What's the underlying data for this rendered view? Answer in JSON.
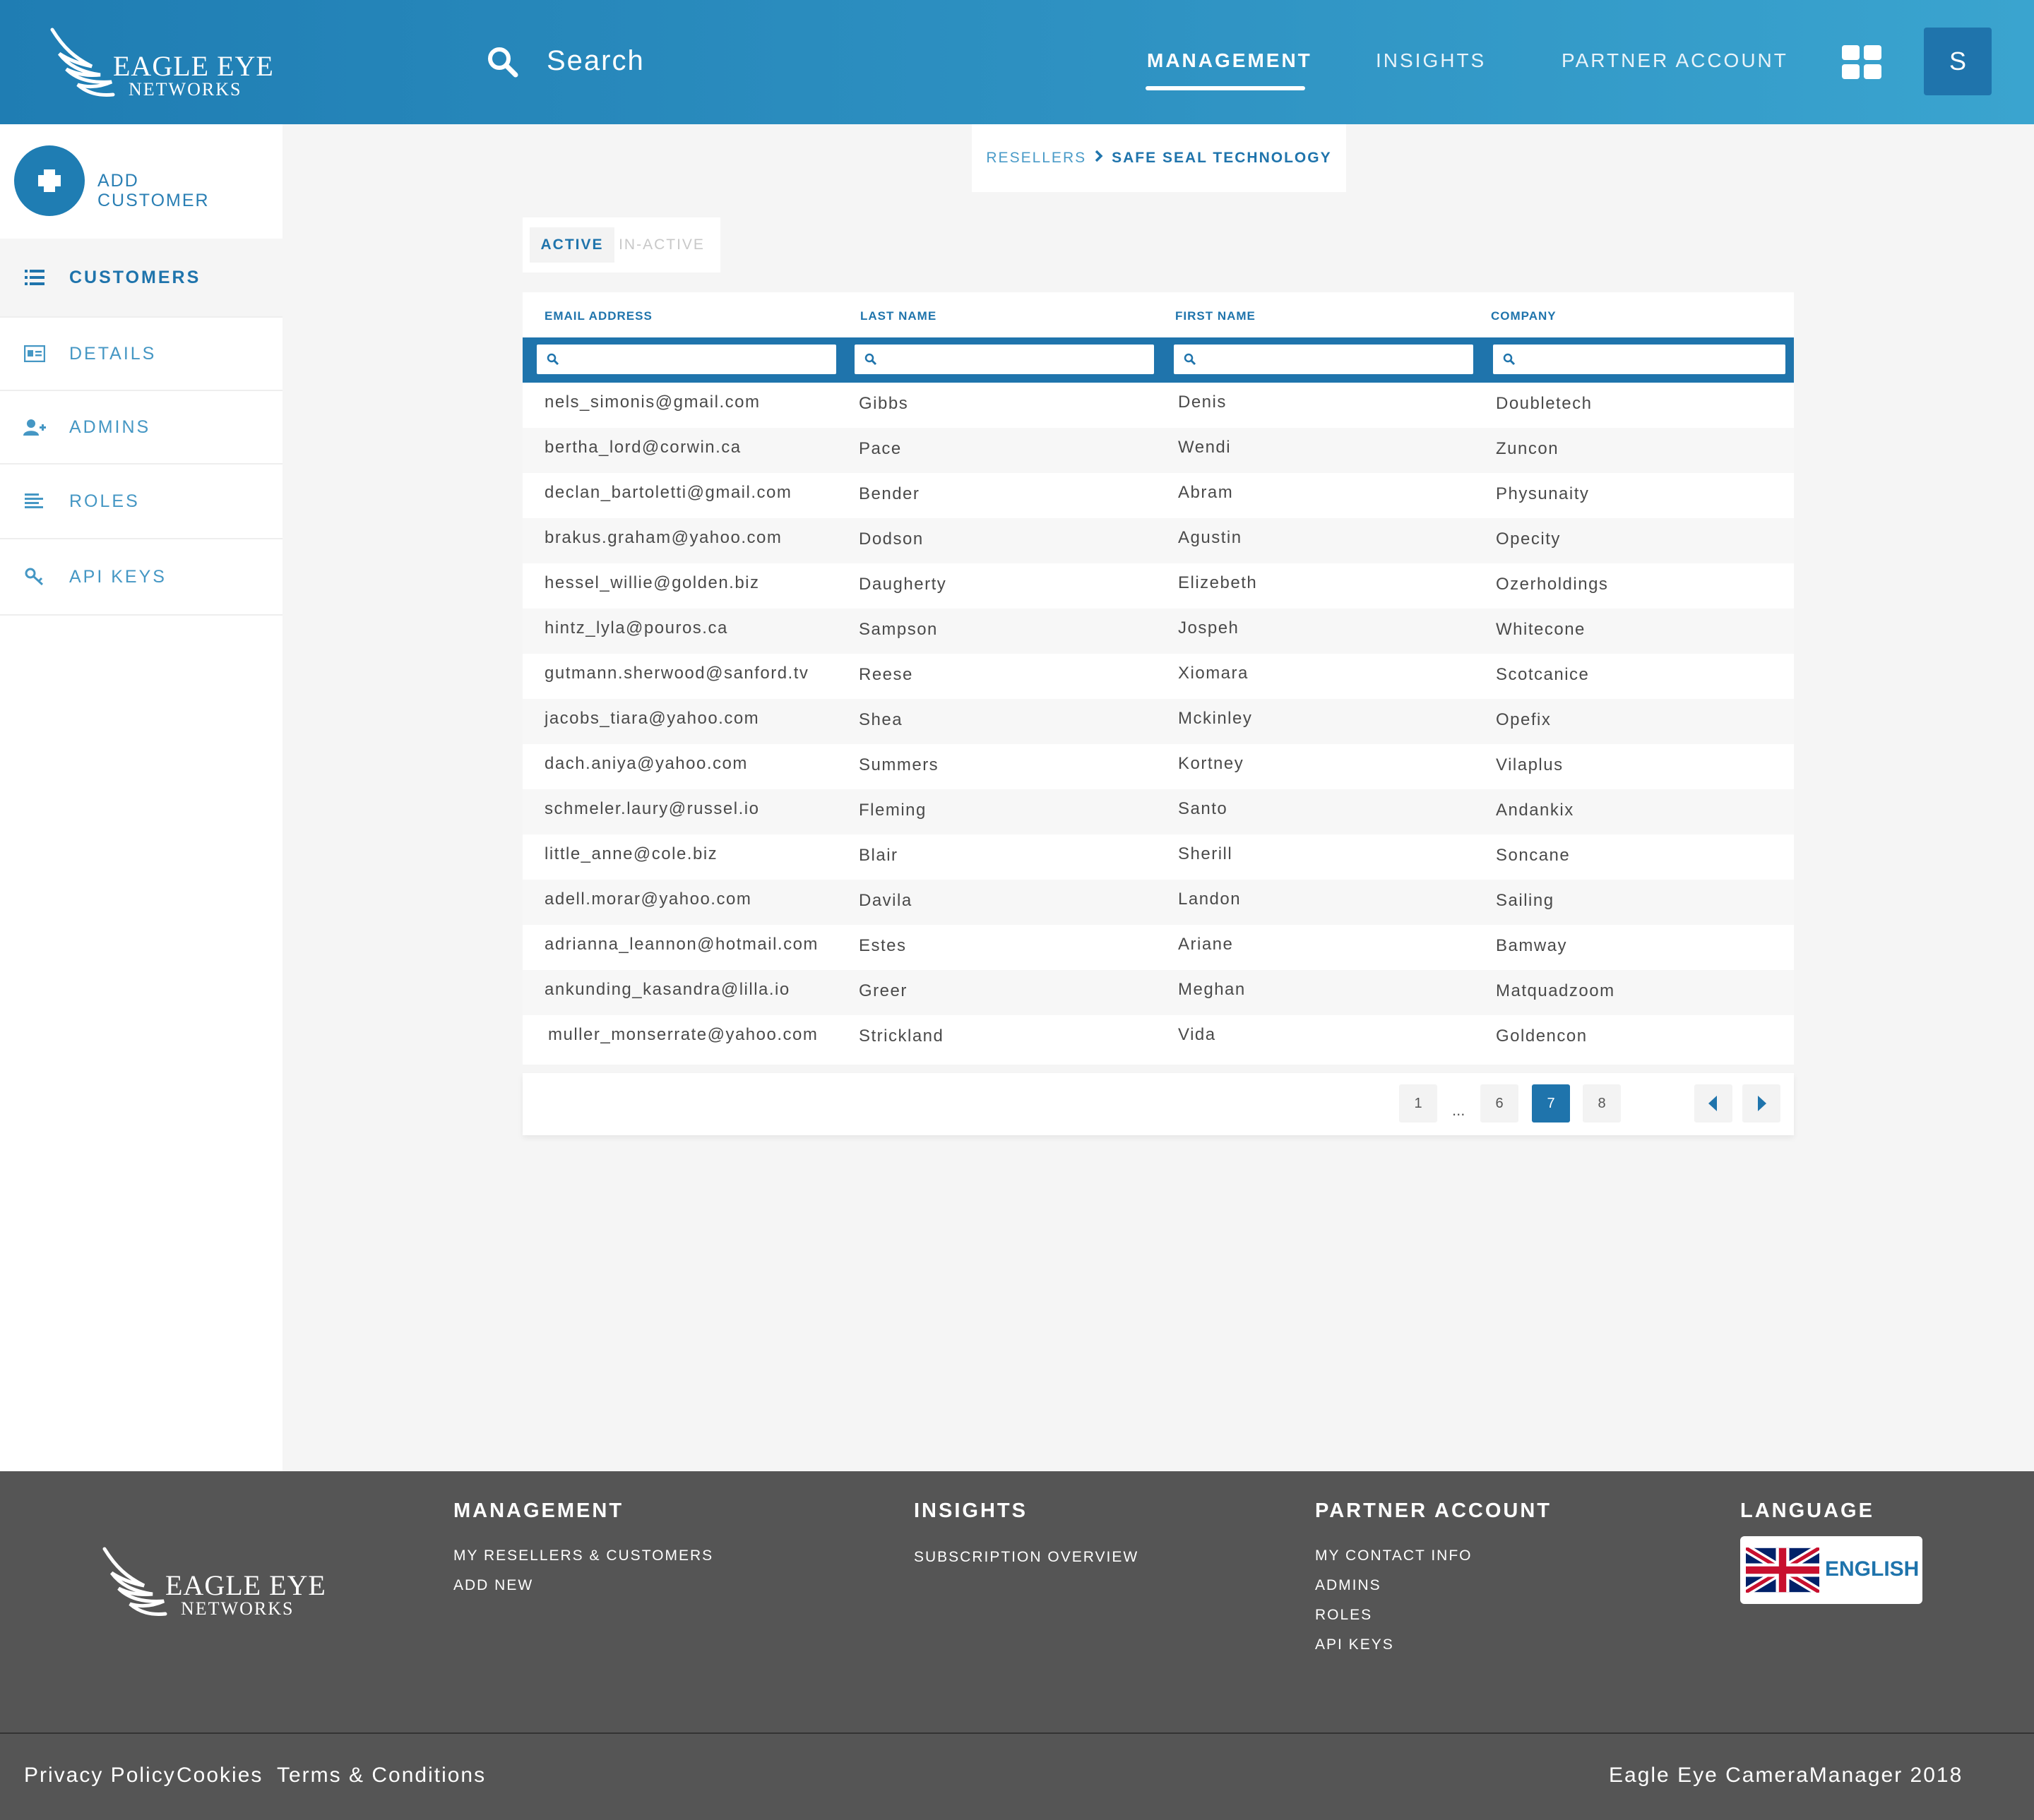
{
  "header": {
    "logo_line1": "EAGLE EYE",
    "logo_line2": "NETWORKS",
    "search_label": "Search",
    "nav": [
      {
        "label": "MANAGEMENT",
        "active": true
      },
      {
        "label": "INSIGHTS",
        "active": false
      },
      {
        "label": "PARTNER ACCOUNT",
        "active": false
      }
    ],
    "avatar_initial": "S",
    "apps_icon": "grid-icon"
  },
  "sidebar": {
    "add_label": "ADD CUSTOMER",
    "items": [
      {
        "label": "CUSTOMERS",
        "icon": "list-icon",
        "active": true
      },
      {
        "label": "DETAILS",
        "icon": "id-card-icon",
        "active": false
      },
      {
        "label": "ADMINS",
        "icon": "user-plus-icon",
        "active": false
      },
      {
        "label": "ROLES",
        "icon": "align-left-icon",
        "active": false
      },
      {
        "label": "API KEYS",
        "icon": "key-icon",
        "active": false
      }
    ]
  },
  "breadcrumb": {
    "parent": "RESELLERS",
    "current": "SAFE SEAL TECHNOLOGY"
  },
  "tabs": {
    "active": "ACTIVE",
    "inactive": "IN-ACTIVE"
  },
  "table": {
    "columns": [
      "EMAIL ADDRESS",
      "LAST NAME",
      "FIRST NAME",
      "COMPANY"
    ],
    "rows": [
      [
        "nels_simonis@gmail.com",
        "Gibbs",
        "Denis",
        "Doubletech"
      ],
      [
        "bertha_lord@corwin.ca",
        "Pace",
        "Wendi",
        "Zuncon"
      ],
      [
        "declan_bartoletti@gmail.com",
        "Bender",
        "Abram",
        "Physunaity"
      ],
      [
        "brakus.graham@yahoo.com",
        "Dodson",
        "Agustin",
        "Opecity"
      ],
      [
        "hessel_willie@golden.biz",
        "Daugherty",
        "Elizebeth",
        "Ozerholdings"
      ],
      [
        "hintz_lyla@pouros.ca",
        "Sampson",
        "Jospeh",
        "Whitecone"
      ],
      [
        "gutmann.sherwood@sanford.tv",
        "Reese",
        "Xiomara",
        "Scotcanice"
      ],
      [
        "jacobs_tiara@yahoo.com",
        "Shea",
        "Mckinley",
        "Opefix"
      ],
      [
        "dach.aniya@yahoo.com",
        "Summers",
        "Kortney",
        "Vilaplus"
      ],
      [
        "schmeler.laury@russel.io",
        "Fleming",
        "Santo",
        "Andankix"
      ],
      [
        "little_anne@cole.biz",
        "Blair",
        "Sherill",
        "Soncane"
      ],
      [
        "adell.morar@yahoo.com",
        "Davila",
        "Landon",
        "Sailing"
      ],
      [
        "adrianna_leannon@hotmail.com",
        "Estes",
        "Ariane",
        "Bamway"
      ],
      [
        "ankunding_kasandra@lilla.io",
        "Greer",
        "Meghan",
        "Matquadzoom"
      ],
      [
        "muller_monserrate@yahoo.com",
        "Strickland",
        "Vida",
        "Goldencon"
      ]
    ]
  },
  "pagination": {
    "first": "1",
    "ellipsis": "...",
    "pages": [
      "6",
      "7",
      "8"
    ],
    "current": "7"
  },
  "footer": {
    "logo_line1": "EAGLE EYE",
    "logo_line2": "NETWORKS",
    "management": {
      "title": "MANAGEMENT",
      "links": [
        "MY RESELLERS & CUSTOMERS",
        "ADD NEW"
      ]
    },
    "insights": {
      "title": "INSIGHTS",
      "links": [
        "SUBSCRIPTION OVERVIEW"
      ]
    },
    "partner": {
      "title": "PARTNER ACCOUNT",
      "links": [
        "MY CONTACT INFO",
        "ADMINS",
        "ROLES",
        "API KEYS"
      ]
    },
    "language": {
      "title": "LANGUAGE",
      "value": "ENGLISH",
      "flag": "uk-flag-icon"
    },
    "bottom": {
      "privacy": "Privacy Policy",
      "cookies": "Cookies",
      "terms": "Terms & Conditions",
      "copyright": "Eagle Eye CameraManager 2018"
    }
  },
  "colors": {
    "brand": "#1f74ac",
    "header_start": "#1f7db3",
    "header_end": "#3aa4cf",
    "footer": "#555555"
  }
}
